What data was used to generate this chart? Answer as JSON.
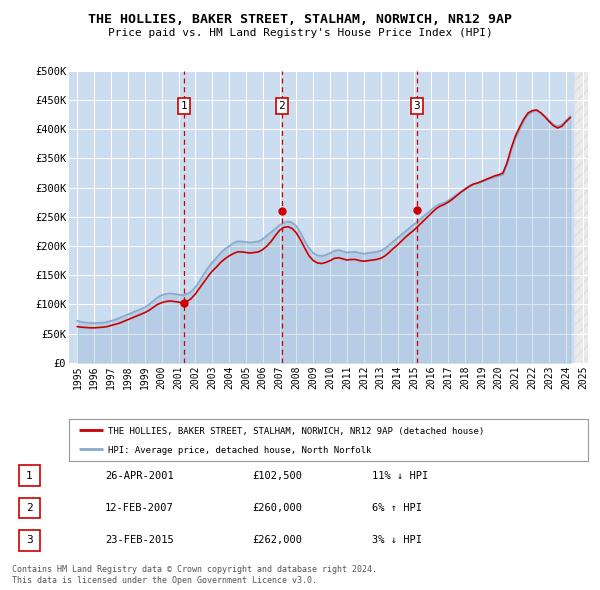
{
  "title": "THE HOLLIES, BAKER STREET, STALHAM, NORWICH, NR12 9AP",
  "subtitle": "Price paid vs. HM Land Registry's House Price Index (HPI)",
  "background_color": "#dce9f5",
  "plot_bg_color": "#ccddf0",
  "legend_label_red": "THE HOLLIES, BAKER STREET, STALHAM, NORWICH, NR12 9AP (detached house)",
  "legend_label_blue": "HPI: Average price, detached house, North Norfolk",
  "footer1": "Contains HM Land Registry data © Crown copyright and database right 2024.",
  "footer2": "This data is licensed under the Open Government Licence v3.0.",
  "ylim": [
    0,
    500000
  ],
  "yticks": [
    0,
    50000,
    100000,
    150000,
    200000,
    250000,
    300000,
    350000,
    400000,
    450000,
    500000
  ],
  "ytick_labels": [
    "£0",
    "£50K",
    "£100K",
    "£150K",
    "£200K",
    "£250K",
    "£300K",
    "£350K",
    "£400K",
    "£450K",
    "£500K"
  ],
  "transactions": [
    {
      "num": 1,
      "date": "26-APR-2001",
      "price": 102500,
      "hpi_diff": "11% ↓ HPI",
      "x_year": 2001.32
    },
    {
      "num": 2,
      "date": "12-FEB-2007",
      "price": 260000,
      "hpi_diff": "6% ↑ HPI",
      "x_year": 2007.12
    },
    {
      "num": 3,
      "date": "23-FEB-2015",
      "price": 262000,
      "hpi_diff": "3% ↓ HPI",
      "x_year": 2015.15
    }
  ],
  "hpi_data_x": [
    1995.0,
    1995.25,
    1995.5,
    1995.75,
    1996.0,
    1996.25,
    1996.5,
    1996.75,
    1997.0,
    1997.25,
    1997.5,
    1997.75,
    1998.0,
    1998.25,
    1998.5,
    1998.75,
    1999.0,
    1999.25,
    1999.5,
    1999.75,
    2000.0,
    2000.25,
    2000.5,
    2000.75,
    2001.0,
    2001.25,
    2001.5,
    2001.75,
    2002.0,
    2002.25,
    2002.5,
    2002.75,
    2003.0,
    2003.25,
    2003.5,
    2003.75,
    2004.0,
    2004.25,
    2004.5,
    2004.75,
    2005.0,
    2005.25,
    2005.5,
    2005.75,
    2006.0,
    2006.25,
    2006.5,
    2006.75,
    2007.0,
    2007.25,
    2007.5,
    2007.75,
    2008.0,
    2008.25,
    2008.5,
    2008.75,
    2009.0,
    2009.25,
    2009.5,
    2009.75,
    2010.0,
    2010.25,
    2010.5,
    2010.75,
    2011.0,
    2011.25,
    2011.5,
    2011.75,
    2012.0,
    2012.25,
    2012.5,
    2012.75,
    2013.0,
    2013.25,
    2013.5,
    2013.75,
    2014.0,
    2014.25,
    2014.5,
    2014.75,
    2015.0,
    2015.25,
    2015.5,
    2015.75,
    2016.0,
    2016.25,
    2016.5,
    2016.75,
    2017.0,
    2017.25,
    2017.5,
    2017.75,
    2018.0,
    2018.25,
    2018.5,
    2018.75,
    2019.0,
    2019.25,
    2019.5,
    2019.75,
    2020.0,
    2020.25,
    2020.5,
    2020.75,
    2021.0,
    2021.25,
    2021.5,
    2021.75,
    2022.0,
    2022.25,
    2022.5,
    2022.75,
    2023.0,
    2023.25,
    2023.5,
    2023.75,
    2024.0,
    2024.25
  ],
  "hpi_data_y": [
    72000,
    70000,
    69000,
    68500,
    68000,
    68500,
    69000,
    70000,
    72000,
    74000,
    77000,
    80000,
    83000,
    86000,
    89000,
    92000,
    95000,
    100000,
    106000,
    112000,
    116000,
    118000,
    119000,
    118000,
    117000,
    116000,
    118000,
    122000,
    130000,
    140000,
    152000,
    163000,
    172000,
    180000,
    188000,
    195000,
    200000,
    205000,
    208000,
    208000,
    207000,
    206000,
    207000,
    208000,
    212000,
    218000,
    224000,
    230000,
    236000,
    240000,
    242000,
    240000,
    234000,
    222000,
    208000,
    196000,
    188000,
    184000,
    183000,
    185000,
    188000,
    192000,
    193000,
    191000,
    189000,
    190000,
    190000,
    188000,
    187000,
    188000,
    189000,
    190000,
    192000,
    196000,
    202000,
    208000,
    214000,
    220000,
    226000,
    232000,
    238000,
    244000,
    250000,
    256000,
    262000,
    268000,
    272000,
    274000,
    278000,
    283000,
    288000,
    293000,
    298000,
    303000,
    306000,
    308000,
    310000,
    313000,
    316000,
    318000,
    320000,
    322000,
    340000,
    365000,
    385000,
    400000,
    415000,
    425000,
    430000,
    432000,
    428000,
    422000,
    415000,
    408000,
    405000,
    408000,
    415000,
    422000
  ],
  "price_data_x": [
    1995.0,
    1995.25,
    1995.5,
    1995.75,
    1996.0,
    1996.25,
    1996.5,
    1996.75,
    1997.0,
    1997.25,
    1997.5,
    1997.75,
    1998.0,
    1998.25,
    1998.5,
    1998.75,
    1999.0,
    1999.25,
    1999.5,
    1999.75,
    2000.0,
    2000.25,
    2000.5,
    2000.75,
    2001.0,
    2001.25,
    2001.5,
    2001.75,
    2002.0,
    2002.25,
    2002.5,
    2002.75,
    2003.0,
    2003.25,
    2003.5,
    2003.75,
    2004.0,
    2004.25,
    2004.5,
    2004.75,
    2005.0,
    2005.25,
    2005.5,
    2005.75,
    2006.0,
    2006.25,
    2006.5,
    2006.75,
    2007.0,
    2007.25,
    2007.5,
    2007.75,
    2008.0,
    2008.25,
    2008.5,
    2008.75,
    2009.0,
    2009.25,
    2009.5,
    2009.75,
    2010.0,
    2010.25,
    2010.5,
    2010.75,
    2011.0,
    2011.25,
    2011.5,
    2011.75,
    2012.0,
    2012.25,
    2012.5,
    2012.75,
    2013.0,
    2013.25,
    2013.5,
    2013.75,
    2014.0,
    2014.25,
    2014.5,
    2014.75,
    2015.0,
    2015.25,
    2015.5,
    2015.75,
    2016.0,
    2016.25,
    2016.5,
    2016.75,
    2017.0,
    2017.25,
    2017.5,
    2017.75,
    2018.0,
    2018.25,
    2018.5,
    2018.75,
    2019.0,
    2019.25,
    2019.5,
    2019.75,
    2020.0,
    2020.25,
    2020.5,
    2020.75,
    2021.0,
    2021.25,
    2021.5,
    2021.75,
    2022.0,
    2022.25,
    2022.5,
    2022.75,
    2023.0,
    2023.25,
    2023.5,
    2023.75,
    2024.0,
    2024.25
  ],
  "price_data_y": [
    62000,
    61000,
    60500,
    60000,
    60000,
    60500,
    61000,
    62000,
    64000,
    66000,
    68000,
    71000,
    74000,
    77000,
    80000,
    83000,
    86000,
    90000,
    95000,
    100000,
    103000,
    105000,
    106000,
    105000,
    104000,
    102500,
    105000,
    110000,
    118000,
    128000,
    138000,
    148000,
    157000,
    164000,
    172000,
    178000,
    183000,
    187000,
    190000,
    190000,
    189000,
    188000,
    189000,
    190000,
    194000,
    200000,
    208000,
    218000,
    227000,
    232000,
    233000,
    230000,
    222000,
    210000,
    196000,
    183000,
    175000,
    171000,
    170000,
    172000,
    175000,
    179000,
    180000,
    178000,
    176000,
    177000,
    177000,
    175000,
    174000,
    175000,
    176000,
    177000,
    179000,
    183000,
    189000,
    196000,
    202000,
    209000,
    216000,
    222000,
    228000,
    235000,
    242000,
    249000,
    256000,
    263000,
    268000,
    271000,
    275000,
    280000,
    286000,
    292000,
    297000,
    302000,
    306000,
    308000,
    311000,
    314000,
    317000,
    320000,
    322000,
    325000,
    343000,
    368000,
    389000,
    404000,
    418000,
    428000,
    432000,
    433000,
    428000,
    421000,
    413000,
    406000,
    402000,
    405000,
    413000,
    420000
  ],
  "xlim_start": 1994.5,
  "xlim_end": 2025.3,
  "xticks": [
    1995,
    1996,
    1997,
    1998,
    1999,
    2000,
    2001,
    2002,
    2003,
    2004,
    2005,
    2006,
    2007,
    2008,
    2009,
    2010,
    2011,
    2012,
    2013,
    2014,
    2015,
    2016,
    2017,
    2018,
    2019,
    2020,
    2021,
    2022,
    2023,
    2024,
    2025
  ],
  "hatch_start": 2024.5,
  "red_color": "#cc0000",
  "blue_color": "#88aacc",
  "grid_color": "#ffffff",
  "table_rows": [
    [
      "1",
      "26-APR-2001",
      "£102,500",
      "11% ↓ HPI"
    ],
    [
      "2",
      "12-FEB-2007",
      "£260,000",
      "6% ↑ HPI"
    ],
    [
      "3",
      "23-FEB-2015",
      "£262,000",
      "3% ↓ HPI"
    ]
  ]
}
